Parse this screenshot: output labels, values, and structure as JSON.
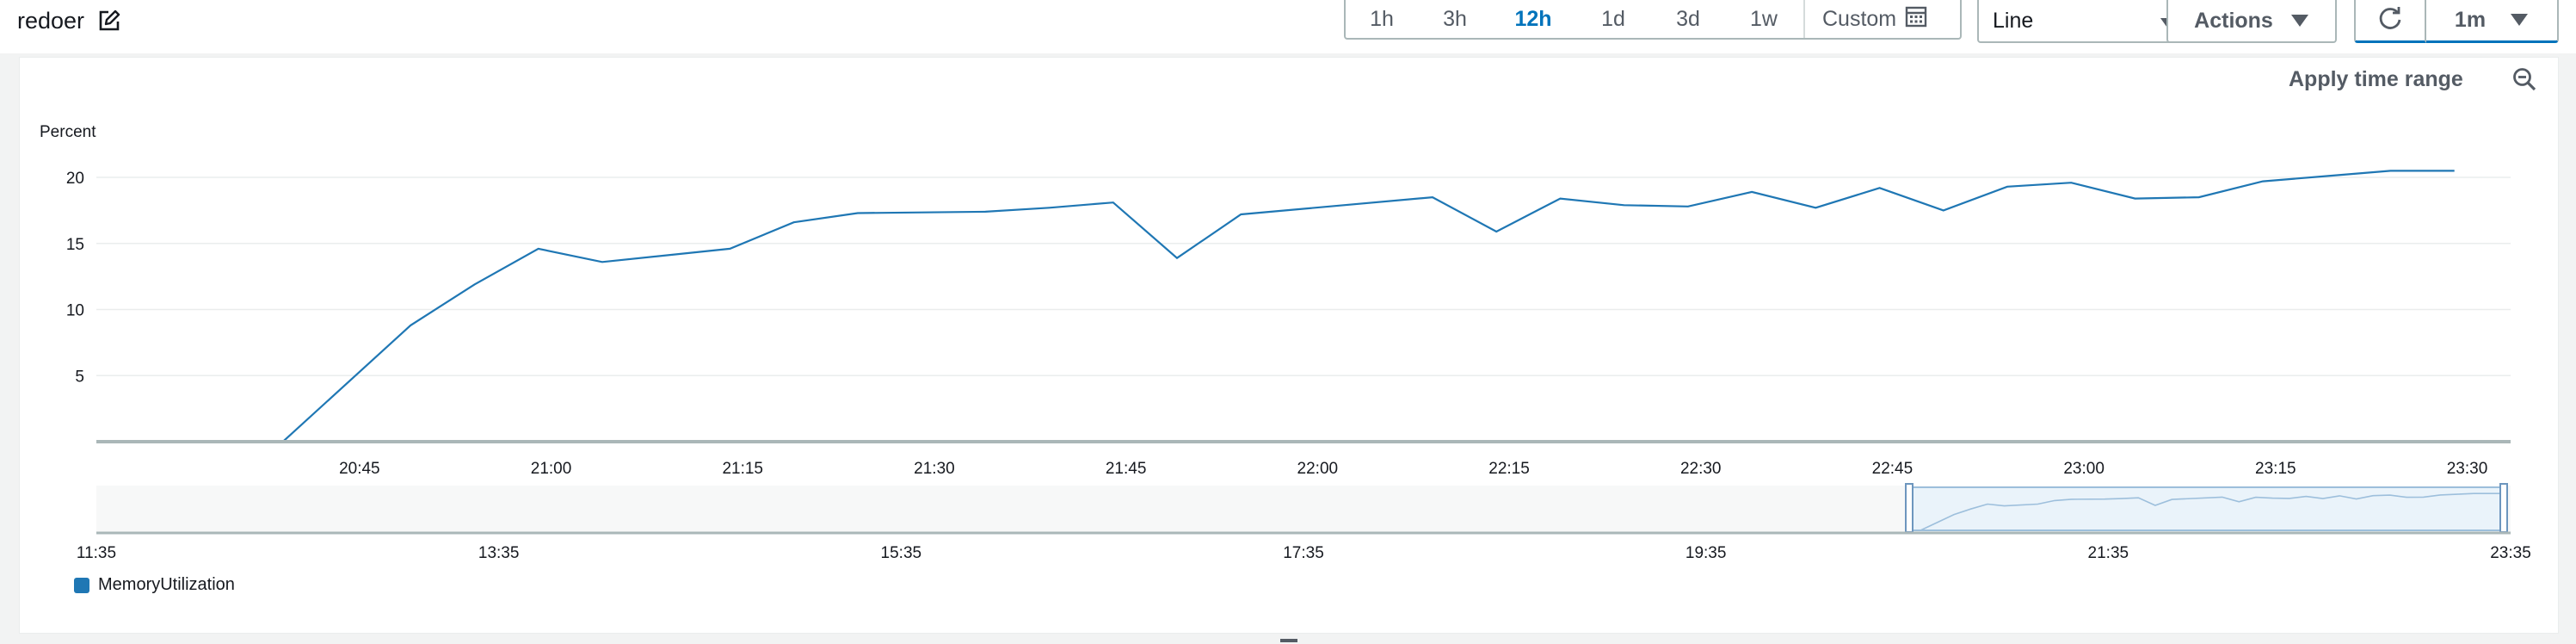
{
  "header": {
    "title": "redoer",
    "edit_icon": "edit-icon",
    "time_ranges": [
      {
        "label": "1h",
        "active": false
      },
      {
        "label": "3h",
        "active": false
      },
      {
        "label": "12h",
        "active": true
      },
      {
        "label": "1d",
        "active": false
      },
      {
        "label": "3d",
        "active": false
      },
      {
        "label": "1w",
        "active": false
      }
    ],
    "custom_label": "Custom",
    "chart_type_value": "Line",
    "actions_label": "Actions",
    "refresh_interval": "1m",
    "accent_color": "#0073bb"
  },
  "panel": {
    "apply_time_range_label": "Apply time range",
    "legend_label": "MemoryUtilization"
  },
  "chart_data": {
    "type": "line",
    "ylabel": "Percent",
    "y_ticks": [
      "5",
      "10",
      "15",
      "20"
    ],
    "ylim": [
      0,
      23
    ],
    "x_ticks": [
      "20:45",
      "21:00",
      "21:15",
      "21:30",
      "21:45",
      "22:00",
      "22:15",
      "22:30",
      "22:45",
      "23:00",
      "23:15",
      "23:30"
    ],
    "x_tick_minutes": [
      1245,
      1260,
      1275,
      1290,
      1305,
      1320,
      1335,
      1350,
      1365,
      1380,
      1395,
      1410
    ],
    "xlim_minutes": [
      1224.4,
      1413.4
    ],
    "series": [
      {
        "name": "MemoryUtilization",
        "color": "#1f77b4",
        "x": [
          "20:39",
          "20:49",
          "20:54",
          "20:59",
          "21:04",
          "21:14",
          "21:19",
          "21:24",
          "21:34",
          "21:39",
          "21:44",
          "21:49",
          "21:54",
          "22:09",
          "22:14",
          "22:19",
          "22:24",
          "22:29",
          "22:34",
          "22:39",
          "22:44",
          "22:49",
          "22:54",
          "22:59",
          "23:04",
          "23:09",
          "23:14",
          "23:19",
          "23:24",
          "23:29"
        ],
        "values": [
          0,
          8.8,
          11.9,
          14.6,
          13.6,
          14.6,
          16.6,
          17.3,
          17.4,
          17.7,
          18.1,
          13.9,
          17.2,
          18.5,
          15.9,
          18.4,
          17.9,
          17.8,
          18.9,
          17.7,
          19.2,
          17.5,
          19.3,
          19.6,
          18.4,
          18.5,
          19.7,
          20.1,
          20.5,
          20.5
        ]
      }
    ],
    "navigator": {
      "x_ticks": [
        "11:35",
        "13:35",
        "15:35",
        "17:35",
        "19:35",
        "21:35",
        "23:35"
      ]
    },
    "grid": true,
    "legend_position": "bottom-left"
  }
}
